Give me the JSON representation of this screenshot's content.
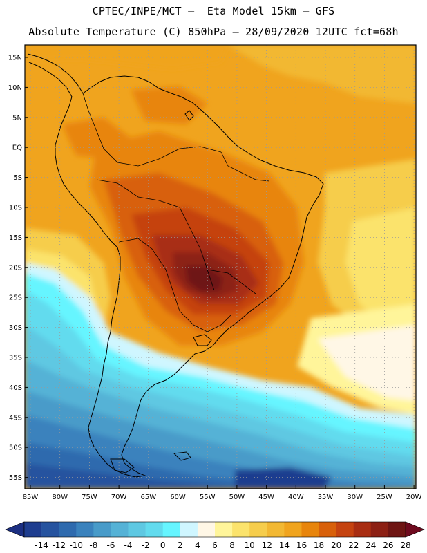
{
  "header": {
    "line1": "CPTEC/INPE/MCT –  Eta Model 15km – GFS",
    "line2": "Absolute Temperature (C) 850hPa – 28/09/2020 12UTC fct=68h"
  },
  "map": {
    "lat_labels": [
      "15N",
      "10N",
      "5N",
      "EQ",
      "5S",
      "10S",
      "15S",
      "20S",
      "25S",
      "30S",
      "35S",
      "40S",
      "45S",
      "50S",
      "55S"
    ],
    "lon_labels": [
      "85W",
      "80W",
      "75W",
      "70W",
      "65W",
      "60W",
      "55W",
      "50W",
      "45W",
      "40W",
      "35W",
      "30W",
      "25W",
      "20W"
    ]
  },
  "colorbar": {
    "colors": [
      "#1e3d8f",
      "#26539f",
      "#2e6aae",
      "#3a82bd",
      "#489bc9",
      "#55b2d6",
      "#5ec8e2",
      "#62dbee",
      "#66f5ff",
      "#cff6ff",
      "#fff7e6",
      "#fff59a",
      "#fbe36c",
      "#f6cd4c",
      "#f2b833",
      "#f0a41e",
      "#e8850c",
      "#d8600a",
      "#c54310",
      "#a82d12",
      "#8c2014",
      "#6e1513"
    ],
    "labels": [
      "-14",
      "-12",
      "-10",
      "-8",
      "-6",
      "-4",
      "-2",
      "0",
      "2",
      "4",
      "6",
      "8",
      "10",
      "12",
      "14",
      "16",
      "18",
      "20",
      "22",
      "24",
      "26",
      "28"
    ],
    "under_color": "#1c2f82",
    "over_color": "#6e0a1e"
  }
}
